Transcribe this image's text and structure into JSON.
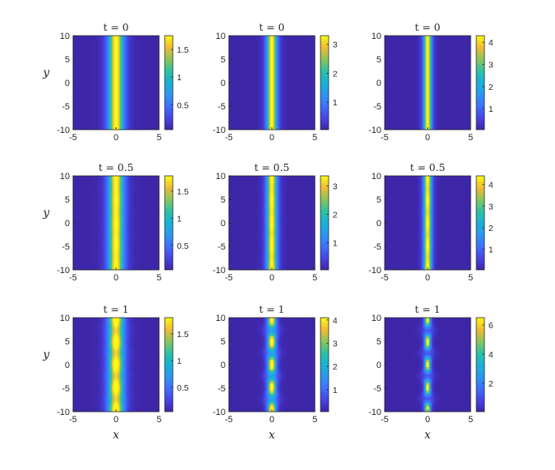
{
  "chart_data": [
    {
      "type": "heatmap",
      "title": "t = 0",
      "ylabel": "y",
      "xlabel": "",
      "x_ticks": [
        "-5",
        "0",
        "5"
      ],
      "y_ticks": [
        "10",
        "5",
        "0",
        "-5",
        "-10"
      ],
      "xlim": [
        -5,
        5
      ],
      "ylim": [
        -10,
        10
      ],
      "colorbar": {
        "ticks": [
          "1.5",
          "1",
          "0.5"
        ],
        "range": [
          0.05,
          1.75
        ]
      },
      "peak": 1.75,
      "width": 0.8,
      "modulation": 0
    },
    {
      "type": "heatmap",
      "title": "t = 0",
      "ylabel": "",
      "xlabel": "",
      "x_ticks": [
        "-5",
        "0",
        "5"
      ],
      "y_ticks": [
        "10",
        "5",
        "0",
        "-5",
        "-10"
      ],
      "xlim": [
        -5,
        5
      ],
      "ylim": [
        -10,
        10
      ],
      "colorbar": {
        "ticks": [
          "3",
          "2",
          "1"
        ],
        "range": [
          0.05,
          3.3
        ]
      },
      "peak": 3.3,
      "width": 0.55,
      "modulation": 0
    },
    {
      "type": "heatmap",
      "title": "t = 0",
      "ylabel": "",
      "xlabel": "",
      "x_ticks": [
        "-5",
        "0",
        "5"
      ],
      "y_ticks": [
        "10",
        "5",
        "0",
        "-5",
        "-10"
      ],
      "xlim": [
        -5,
        5
      ],
      "ylim": [
        -10,
        10
      ],
      "colorbar": {
        "ticks": [
          "4",
          "3",
          "2",
          "1"
        ],
        "range": [
          0.05,
          4.3
        ]
      },
      "peak": 4.3,
      "width": 0.42,
      "modulation": 0
    },
    {
      "type": "heatmap",
      "title": "t = 0.5",
      "ylabel": "y",
      "xlabel": "",
      "x_ticks": [
        "-5",
        "0",
        "5"
      ],
      "y_ticks": [
        "10",
        "5",
        "0",
        "-5",
        "-10"
      ],
      "xlim": [
        -5,
        5
      ],
      "ylim": [
        -10,
        10
      ],
      "colorbar": {
        "ticks": [
          "1.5",
          "1",
          "0.5"
        ],
        "range": [
          0.05,
          1.78
        ]
      },
      "peak": 1.78,
      "width": 0.8,
      "modulation": 0.02
    },
    {
      "type": "heatmap",
      "title": "t = 0.5",
      "ylabel": "",
      "xlabel": "",
      "x_ticks": [
        "-5",
        "0",
        "5"
      ],
      "y_ticks": [
        "10",
        "5",
        "0",
        "-5",
        "-10"
      ],
      "xlim": [
        -5,
        5
      ],
      "ylim": [
        -10,
        10
      ],
      "colorbar": {
        "ticks": [
          "3",
          "2",
          "1"
        ],
        "range": [
          0.05,
          3.35
        ]
      },
      "peak": 3.35,
      "width": 0.55,
      "modulation": 0.03
    },
    {
      "type": "heatmap",
      "title": "t = 0.5",
      "ylabel": "",
      "xlabel": "",
      "x_ticks": [
        "-5",
        "0",
        "5"
      ],
      "y_ticks": [
        "10",
        "5",
        "0",
        "-5",
        "-10"
      ],
      "xlim": [
        -5,
        5
      ],
      "ylim": [
        -10,
        10
      ],
      "colorbar": {
        "ticks": [
          "4",
          "3",
          "2",
          "1"
        ],
        "range": [
          0.05,
          4.4
        ]
      },
      "peak": 4.4,
      "width": 0.42,
      "modulation": 0.04
    },
    {
      "type": "heatmap",
      "title": "t = 1",
      "ylabel": "y",
      "xlabel": "x",
      "x_ticks": [
        "-5",
        "0",
        "5"
      ],
      "y_ticks": [
        "10",
        "5",
        "0",
        "-5",
        "-10"
      ],
      "xlim": [
        -5,
        5
      ],
      "ylim": [
        -10,
        10
      ],
      "colorbar": {
        "ticks": [
          "1.5",
          "1",
          "0.5"
        ],
        "range": [
          0.05,
          1.8
        ]
      },
      "peak": 1.8,
      "width": 0.82,
      "modulation": 0.1
    },
    {
      "type": "heatmap",
      "title": "t = 1",
      "ylabel": "",
      "xlabel": "x",
      "x_ticks": [
        "-5",
        "0",
        "5"
      ],
      "y_ticks": [
        "10",
        "5",
        "0",
        "-5",
        "-10"
      ],
      "xlim": [
        -5,
        5
      ],
      "ylim": [
        -10,
        10
      ],
      "colorbar": {
        "ticks": [
          "4",
          "3",
          "2",
          "1"
        ],
        "range": [
          0.05,
          4.1
        ]
      },
      "peak": 3.3,
      "width": 0.5,
      "modulation": 0.45
    },
    {
      "type": "heatmap",
      "title": "t = 1",
      "ylabel": "",
      "xlabel": "x",
      "x_ticks": [
        "-5",
        "0",
        "5"
      ],
      "y_ticks": [
        "10",
        "5",
        "0",
        "-5",
        "-10"
      ],
      "xlim": [
        -5,
        5
      ],
      "ylim": [
        -10,
        10
      ],
      "colorbar": {
        "ticks": [
          "6",
          "4",
          "2"
        ],
        "range": [
          0.05,
          6.5
        ]
      },
      "peak": 4.2,
      "width": 0.38,
      "modulation": 0.7
    }
  ]
}
